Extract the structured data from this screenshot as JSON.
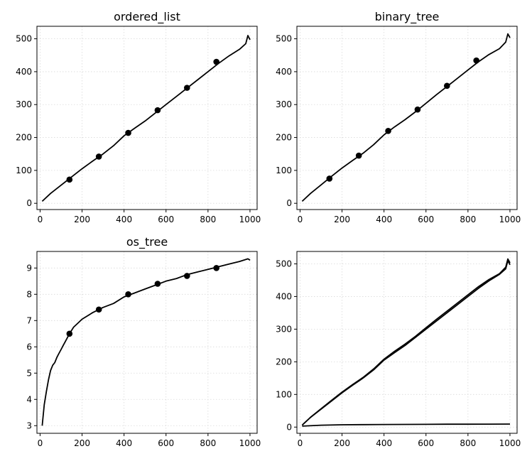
{
  "chart_data": [
    {
      "type": "line",
      "title": "ordered_list",
      "xlabel": "",
      "ylabel": "",
      "xlim": [
        -15,
        1034
      ],
      "ylim": [
        -19,
        538
      ],
      "xticks": [
        0,
        200,
        400,
        600,
        800,
        1000
      ],
      "yticks": [
        0,
        100,
        200,
        300,
        400,
        500
      ],
      "grid": true,
      "series": [
        {
          "kind": "line",
          "x": [
            10,
            50,
            100,
            150,
            200,
            250,
            300,
            350,
            400,
            450,
            500,
            550,
            600,
            650,
            700,
            750,
            800,
            850,
            900,
            950,
            980,
            990,
            1000
          ],
          "y": [
            6,
            30,
            55,
            80,
            105,
            128,
            150,
            175,
            205,
            228,
            250,
            275,
            300,
            325,
            350,
            375,
            400,
            425,
            448,
            468,
            485,
            510,
            497
          ]
        },
        {
          "kind": "markers",
          "x": [
            140,
            280,
            420,
            560,
            700,
            840
          ],
          "y": [
            72,
            142,
            214,
            283,
            351,
            430
          ]
        }
      ]
    },
    {
      "type": "line",
      "title": "binary_tree",
      "xlabel": "",
      "ylabel": "",
      "xlim": [
        -15,
        1034
      ],
      "ylim": [
        -19,
        538
      ],
      "xticks": [
        0,
        200,
        400,
        600,
        800,
        1000
      ],
      "yticks": [
        0,
        100,
        200,
        300,
        400,
        500
      ],
      "grid": true,
      "series": [
        {
          "kind": "line",
          "x": [
            10,
            50,
            100,
            150,
            200,
            250,
            300,
            350,
            400,
            450,
            500,
            550,
            600,
            650,
            700,
            750,
            800,
            850,
            900,
            950,
            980,
            990,
            1000
          ],
          "y": [
            6,
            30,
            56,
            82,
            107,
            130,
            152,
            178,
            208,
            232,
            254,
            278,
            304,
            330,
            355,
            380,
            405,
            430,
            452,
            470,
            490,
            515,
            503
          ]
        },
        {
          "kind": "markers",
          "x": [
            140,
            280,
            420,
            560,
            700,
            840
          ],
          "y": [
            75,
            145,
            220,
            285,
            357,
            434
          ]
        }
      ]
    },
    {
      "type": "line",
      "title": "os_tree",
      "xlabel": "",
      "ylabel": "",
      "xlim": [
        -15,
        1034
      ],
      "ylim": [
        2.71,
        9.63
      ],
      "xticks": [
        0,
        200,
        400,
        600,
        800,
        1000
      ],
      "yticks": [
        3,
        4,
        5,
        6,
        7,
        8,
        9
      ],
      "grid": true,
      "series": [
        {
          "kind": "line",
          "x": [
            10,
            20,
            30,
            40,
            50,
            60,
            70,
            80,
            90,
            100,
            110,
            120,
            130,
            140,
            160,
            180,
            200,
            250,
            300,
            350,
            400,
            450,
            500,
            550,
            600,
            650,
            700,
            750,
            800,
            850,
            900,
            950,
            990,
            1000
          ],
          "y": [
            3.0,
            3.8,
            4.3,
            4.75,
            5.1,
            5.3,
            5.4,
            5.6,
            5.75,
            5.9,
            6.05,
            6.2,
            6.35,
            6.5,
            6.75,
            6.9,
            7.05,
            7.3,
            7.5,
            7.65,
            7.9,
            8.05,
            8.2,
            8.35,
            8.5,
            8.6,
            8.75,
            8.85,
            8.95,
            9.05,
            9.15,
            9.25,
            9.35,
            9.3
          ]
        },
        {
          "kind": "markers",
          "x": [
            140,
            280,
            420,
            560,
            700,
            840
          ],
          "y": [
            6.5,
            7.42,
            8.0,
            8.4,
            8.7,
            9.0
          ]
        }
      ]
    },
    {
      "type": "line",
      "title": "",
      "xlabel": "",
      "ylabel": "",
      "xlim": [
        -15,
        1034
      ],
      "ylim": [
        -19,
        538
      ],
      "xticks": [
        0,
        200,
        400,
        600,
        800,
        1000
      ],
      "yticks": [
        0,
        100,
        200,
        300,
        400,
        500
      ],
      "grid": true,
      "series": [
        {
          "kind": "line",
          "x": [
            10,
            50,
            100,
            150,
            200,
            250,
            300,
            350,
            400,
            450,
            500,
            550,
            600,
            650,
            700,
            750,
            800,
            850,
            900,
            950,
            980,
            990,
            1000
          ],
          "y": [
            6,
            30,
            55,
            80,
            105,
            128,
            150,
            175,
            205,
            228,
            250,
            275,
            300,
            325,
            350,
            375,
            400,
            425,
            448,
            468,
            485,
            510,
            497
          ]
        },
        {
          "kind": "line",
          "x": [
            10,
            50,
            100,
            150,
            200,
            250,
            300,
            350,
            400,
            450,
            500,
            550,
            600,
            650,
            700,
            750,
            800,
            850,
            900,
            950,
            980,
            990,
            1000
          ],
          "y": [
            6,
            30,
            56,
            82,
            107,
            130,
            152,
            178,
            208,
            232,
            254,
            278,
            304,
            330,
            355,
            380,
            405,
            430,
            452,
            470,
            490,
            515,
            503
          ]
        },
        {
          "kind": "line",
          "x": [
            10,
            100,
            200,
            300,
            400,
            500,
            600,
            700,
            800,
            900,
            1000
          ],
          "y": [
            3,
            5.9,
            7.05,
            7.5,
            7.9,
            8.2,
            8.5,
            8.75,
            8.95,
            9.15,
            9.3
          ]
        }
      ]
    }
  ]
}
